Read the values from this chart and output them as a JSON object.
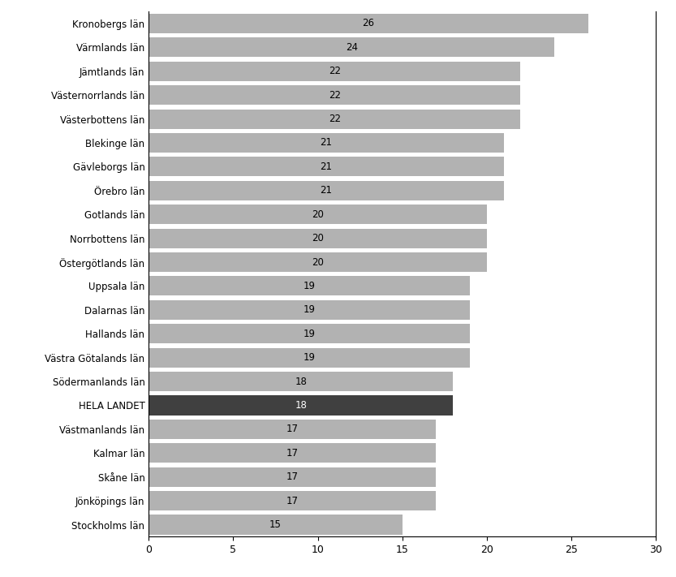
{
  "categories": [
    "Kronobergs län",
    "Värmlands län",
    "Jämtlands län",
    "Västernorrlands län",
    "Västerbottens län",
    "Blekinge län",
    "Gävleborgs län",
    "Örebro län",
    "Gotlands län",
    "Norrbottens län",
    "Östergötlands län",
    "Uppsala län",
    "Dalarnas län",
    "Hallands län",
    "Västra Götalands län",
    "Södermanlands län",
    "HELA LANDET",
    "Västmanlands län",
    "Kalmar län",
    "Skåne län",
    "Jönköpings län",
    "Stockholms län"
  ],
  "values": [
    26,
    24,
    22,
    22,
    22,
    21,
    21,
    21,
    20,
    20,
    20,
    19,
    19,
    19,
    19,
    18,
    18,
    17,
    17,
    17,
    17,
    15
  ],
  "bar_colors": [
    "#b2b2b2",
    "#b2b2b2",
    "#b2b2b2",
    "#b2b2b2",
    "#b2b2b2",
    "#b2b2b2",
    "#b2b2b2",
    "#b2b2b2",
    "#b2b2b2",
    "#b2b2b2",
    "#b2b2b2",
    "#b2b2b2",
    "#b2b2b2",
    "#b2b2b2",
    "#b2b2b2",
    "#b2b2b2",
    "#404040",
    "#b2b2b2",
    "#b2b2b2",
    "#b2b2b2",
    "#b2b2b2",
    "#b2b2b2"
  ],
  "highlight_index": 16,
  "highlight_label_color": "#ffffff",
  "normal_label_color": "#000000",
  "xlim": [
    0,
    30
  ],
  "xticks": [
    0,
    5,
    10,
    15,
    20,
    25,
    30
  ],
  "background_color": "#ffffff",
  "label_fontsize": 8.5,
  "tick_fontsize": 9,
  "bar_height": 0.82
}
